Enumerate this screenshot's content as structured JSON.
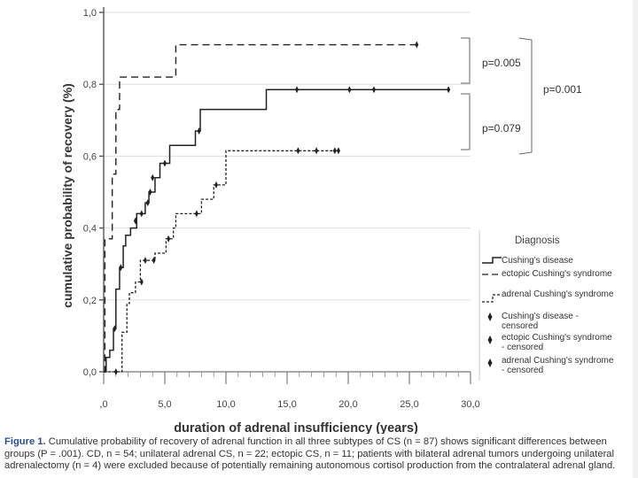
{
  "chart_data": {
    "type": "line",
    "subtype": "kaplan-meier step",
    "xlabel": "duration of adrenal insufficiency (years)",
    "ylabel": "cumulative probability of recovery (%)",
    "xlim": [
      0,
      30
    ],
    "ylim": [
      0,
      1
    ],
    "xticks": [
      0,
      5,
      10,
      15,
      20,
      25,
      30
    ],
    "xtick_labels": [
      ",0",
      "5,0",
      "10,0",
      "15,0",
      "20,0",
      "25,0",
      "30,0"
    ],
    "yticks": [
      0,
      0.2,
      0.4,
      0.6,
      0.8,
      1.0
    ],
    "ytick_labels": [
      "0,0",
      "0,2",
      "0,4",
      "0,6",
      "0,8",
      "1,0"
    ],
    "legend_title": "Diagnosis",
    "legend": [
      "Cushing's disease",
      "ectopic Cushing's syndrome",
      "adrenal Cushing's syndrome",
      "Cushing's disease - censored",
      "ectopic Cushing's syndrome - censored",
      "adrenal Cushing's syndrome - censored"
    ],
    "series": [
      {
        "name": "Cushing's disease",
        "style": "solid",
        "steps": [
          [
            0,
            0
          ],
          [
            0.2,
            0.04
          ],
          [
            0.5,
            0.06
          ],
          [
            0.8,
            0.12
          ],
          [
            1.0,
            0.23
          ],
          [
            1.3,
            0.29
          ],
          [
            1.6,
            0.35
          ],
          [
            1.8,
            0.38
          ],
          [
            2.2,
            0.4
          ],
          [
            2.7,
            0.44
          ],
          [
            3.0,
            0.44
          ],
          [
            3.4,
            0.47
          ],
          [
            3.7,
            0.5
          ],
          [
            4.2,
            0.54
          ],
          [
            4.6,
            0.58
          ],
          [
            5.4,
            0.63
          ],
          [
            7.5,
            0.67
          ],
          [
            7.9,
            0.73
          ],
          [
            13.3,
            0.785
          ],
          [
            28.3,
            0.785
          ]
        ],
        "censored": [
          [
            0.9,
            0.12
          ],
          [
            1.4,
            0.29
          ],
          [
            2.6,
            0.42
          ],
          [
            3.1,
            0.44
          ],
          [
            3.6,
            0.47
          ],
          [
            3.8,
            0.5
          ],
          [
            4.0,
            0.54
          ],
          [
            5.0,
            0.58
          ],
          [
            7.8,
            0.67
          ],
          [
            15.8,
            0.785
          ],
          [
            20.1,
            0.785
          ],
          [
            22.1,
            0.785
          ],
          [
            28.2,
            0.785
          ]
        ]
      },
      {
        "name": "ectopic Cushing's syndrome",
        "style": "dashed",
        "steps": [
          [
            0,
            0
          ],
          [
            0.1,
            0.37
          ],
          [
            0.5,
            0.37
          ],
          [
            0.7,
            0.55
          ],
          [
            1.0,
            0.73
          ],
          [
            1.3,
            0.82
          ],
          [
            5.7,
            0.82
          ],
          [
            5.9,
            0.91
          ],
          [
            25.6,
            0.91
          ]
        ],
        "censored": [
          [
            25.6,
            0.91
          ]
        ]
      },
      {
        "name": "adrenal Cushing's syndrome",
        "style": "dotted",
        "steps": [
          [
            0,
            0
          ],
          [
            1.3,
            0.0
          ],
          [
            1.5,
            0.11
          ],
          [
            1.9,
            0.19
          ],
          [
            2.1,
            0.22
          ],
          [
            2.6,
            0.25
          ],
          [
            3.0,
            0.31
          ],
          [
            4.2,
            0.33
          ],
          [
            5.1,
            0.37
          ],
          [
            5.7,
            0.4
          ],
          [
            5.9,
            0.44
          ],
          [
            7.7,
            0.44
          ],
          [
            8.0,
            0.48
          ],
          [
            9.0,
            0.52
          ],
          [
            10.0,
            0.615
          ],
          [
            19.2,
            0.615
          ]
        ],
        "censored": [
          [
            1.0,
            0.0
          ],
          [
            3.1,
            0.25
          ],
          [
            3.4,
            0.31
          ],
          [
            4.1,
            0.31
          ],
          [
            5.3,
            0.37
          ],
          [
            7.6,
            0.44
          ],
          [
            9.2,
            0.52
          ],
          [
            15.9,
            0.615
          ],
          [
            17.4,
            0.615
          ],
          [
            18.9,
            0.615
          ],
          [
            19.2,
            0.615
          ]
        ]
      }
    ],
    "annotations": [
      "p=0.005",
      "p=0.079",
      "p=0.001"
    ]
  },
  "caption": {
    "figure_label": "Figure 1.",
    "text": "Cumulative probability of recovery of adrenal function in all three subtypes of CS (n = 87) shows significant differences between groups (P = .001). CD, n = 54; unilateral adrenal CS, n = 22; ectopic CS, n = 11; patients with bilateral adrenal tumors undergoing unilateral adrenalectomy (n = 4) were excluded because of potentially remaining autonomous cortisol production from the contralateral adrenal gland."
  }
}
